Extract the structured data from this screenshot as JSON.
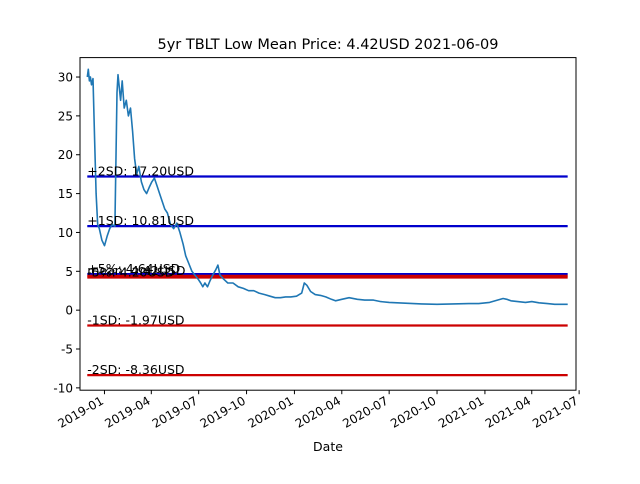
{
  "chart_data": {
    "type": "line",
    "title": "5yr TBLT Low Mean Price: 4.42USD 2021-06-09",
    "xlabel": "Date",
    "ylabel": "",
    "ylim": [
      -10.3,
      32.5
    ],
    "xlim": [
      "2018-11-15",
      "2021-06-25"
    ],
    "y_ticks": [
      -10,
      -5,
      0,
      5,
      10,
      15,
      20,
      25,
      30
    ],
    "x_ticks": [
      "2019-01",
      "2019-04",
      "2019-07",
      "2019-10",
      "2020-01",
      "2020-04",
      "2020-07",
      "2020-10",
      "2021-01",
      "2021-04",
      "2021-07"
    ],
    "grid": false,
    "series": [
      {
        "color": "#1f77b4",
        "points": [
          [
            "2018-11-29",
            30.0
          ],
          [
            "2018-12-01",
            31.0
          ],
          [
            "2018-12-03",
            29.5
          ],
          [
            "2018-12-05",
            30.0
          ],
          [
            "2018-12-07",
            29.0
          ],
          [
            "2018-12-10",
            29.8
          ],
          [
            "2018-12-13",
            22.0
          ],
          [
            "2018-12-16",
            15.0
          ],
          [
            "2018-12-19",
            11.0
          ],
          [
            "2018-12-22",
            10.5
          ],
          [
            "2018-12-27",
            9.0
          ],
          [
            "2019-01-01",
            8.3
          ],
          [
            "2019-01-06",
            9.5
          ],
          [
            "2019-01-11",
            10.5
          ],
          [
            "2019-01-16",
            11.0
          ],
          [
            "2019-01-21",
            10.8
          ],
          [
            "2019-01-25",
            28.0
          ],
          [
            "2019-01-27",
            30.3
          ],
          [
            "2019-02-01",
            27.0
          ],
          [
            "2019-02-04",
            29.5
          ],
          [
            "2019-02-08",
            26.0
          ],
          [
            "2019-02-12",
            27.0
          ],
          [
            "2019-02-16",
            25.0
          ],
          [
            "2019-02-20",
            26.0
          ],
          [
            "2019-02-24",
            23.0
          ],
          [
            "2019-02-28",
            19.5
          ],
          [
            "2019-03-04",
            17.5
          ],
          [
            "2019-03-08",
            18.5
          ],
          [
            "2019-03-13",
            16.5
          ],
          [
            "2019-03-18",
            15.5
          ],
          [
            "2019-03-23",
            15.0
          ],
          [
            "2019-03-28",
            15.8
          ],
          [
            "2019-04-02",
            16.5
          ],
          [
            "2019-04-07",
            17.0
          ],
          [
            "2019-04-12",
            16.0
          ],
          [
            "2019-04-17",
            15.0
          ],
          [
            "2019-04-22",
            14.0
          ],
          [
            "2019-04-27",
            13.0
          ],
          [
            "2019-05-02",
            12.5
          ],
          [
            "2019-05-08",
            11.0
          ],
          [
            "2019-05-14",
            10.5
          ],
          [
            "2019-05-20",
            11.2
          ],
          [
            "2019-05-26",
            10.0
          ],
          [
            "2019-06-01",
            8.5
          ],
          [
            "2019-06-06",
            7.0
          ],
          [
            "2019-06-12",
            6.0
          ],
          [
            "2019-06-18",
            5.0
          ],
          [
            "2019-06-24",
            4.5
          ],
          [
            "2019-06-30",
            4.0
          ],
          [
            "2019-07-05",
            3.5
          ],
          [
            "2019-07-09",
            3.0
          ],
          [
            "2019-07-13",
            3.5
          ],
          [
            "2019-07-18",
            3.0
          ],
          [
            "2019-07-23",
            3.8
          ],
          [
            "2019-07-28",
            4.5
          ],
          [
            "2019-08-03",
            5.2
          ],
          [
            "2019-08-07",
            5.8
          ],
          [
            "2019-08-11",
            4.5
          ],
          [
            "2019-08-18",
            4.0
          ],
          [
            "2019-08-26",
            3.5
          ],
          [
            "2019-09-05",
            3.5
          ],
          [
            "2019-09-15",
            3.0
          ],
          [
            "2019-09-25",
            2.8
          ],
          [
            "2019-10-05",
            2.5
          ],
          [
            "2019-10-15",
            2.5
          ],
          [
            "2019-10-25",
            2.2
          ],
          [
            "2019-11-05",
            2.0
          ],
          [
            "2019-11-15",
            1.8
          ],
          [
            "2019-11-25",
            1.6
          ],
          [
            "2019-12-05",
            1.6
          ],
          [
            "2019-12-15",
            1.7
          ],
          [
            "2019-12-25",
            1.7
          ],
          [
            "2020-01-05",
            1.8
          ],
          [
            "2020-01-15",
            2.2
          ],
          [
            "2020-01-20",
            3.5
          ],
          [
            "2020-01-25",
            3.2
          ],
          [
            "2020-02-01",
            2.4
          ],
          [
            "2020-02-10",
            2.0
          ],
          [
            "2020-02-20",
            1.9
          ],
          [
            "2020-03-01",
            1.7
          ],
          [
            "2020-03-12",
            1.4
          ],
          [
            "2020-03-20",
            1.2
          ],
          [
            "2020-04-01",
            1.4
          ],
          [
            "2020-04-15",
            1.6
          ],
          [
            "2020-05-01",
            1.4
          ],
          [
            "2020-05-15",
            1.3
          ],
          [
            "2020-06-01",
            1.3
          ],
          [
            "2020-06-15",
            1.1
          ],
          [
            "2020-07-01",
            1.0
          ],
          [
            "2020-08-01",
            0.9
          ],
          [
            "2020-09-01",
            0.8
          ],
          [
            "2020-10-01",
            0.75
          ],
          [
            "2020-11-01",
            0.8
          ],
          [
            "2020-12-01",
            0.85
          ],
          [
            "2020-12-20",
            0.85
          ],
          [
            "2021-01-10",
            1.0
          ],
          [
            "2021-01-25",
            1.3
          ],
          [
            "2021-02-05",
            1.5
          ],
          [
            "2021-02-12",
            1.4
          ],
          [
            "2021-02-20",
            1.2
          ],
          [
            "2021-03-05",
            1.1
          ],
          [
            "2021-03-20",
            1.0
          ],
          [
            "2021-04-01",
            1.1
          ],
          [
            "2021-04-15",
            0.95
          ],
          [
            "2021-05-01",
            0.85
          ],
          [
            "2021-05-15",
            0.75
          ],
          [
            "2021-06-01",
            0.75
          ],
          [
            "2021-06-09",
            0.75
          ]
        ]
      }
    ],
    "hlines": [
      {
        "label": "+2SD: 17.20USD",
        "y": 17.2,
        "color": "#0000cc"
      },
      {
        "label": "+1SD: 10.81USD",
        "y": 10.81,
        "color": "#0000cc"
      },
      {
        "label": "+5%: 4.64USD",
        "y": 4.64,
        "color": "#0000cc"
      },
      {
        "label": "mean: 4.42USD",
        "y": 4.42,
        "color": "#cc0000"
      },
      {
        "label": "-5%: 4.20USD",
        "y": 4.2,
        "color": "#cc0000"
      },
      {
        "label": "-1SD: -1.97USD",
        "y": -1.97,
        "color": "#cc0000"
      },
      {
        "label": "-2SD: -8.36USD",
        "y": -8.36,
        "color": "#cc0000"
      }
    ],
    "hline_x_range": [
      "2018-11-29",
      "2021-06-09"
    ]
  }
}
